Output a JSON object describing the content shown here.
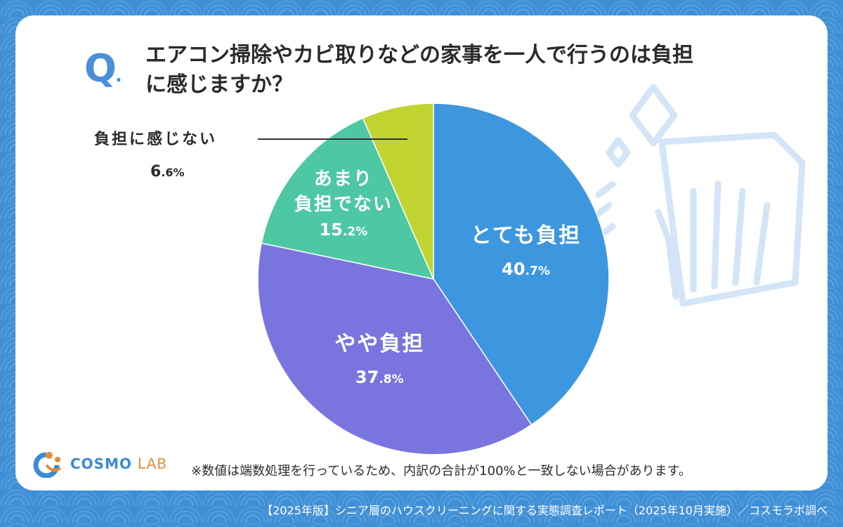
{
  "question": {
    "mark": "Q",
    "mark_dot": ".",
    "line1": "エアコン掃除やカビ取りなどの家事を一人で行うのは負担",
    "line2": "に感じますか？"
  },
  "chart_data": {
    "type": "pie",
    "title": "エアコン掃除やカビ取りなどの家事を一人で行うのは負担に感じますか？",
    "unit": "%",
    "slices": [
      {
        "label": "とても負担",
        "label_lines": [
          "とても負担"
        ],
        "value": 40.7,
        "value_main": "40",
        "value_dec": ".7%",
        "color": "#3d97df"
      },
      {
        "label": "やや負担",
        "label_lines": [
          "やや負担"
        ],
        "value": 37.8,
        "value_main": "37",
        "value_dec": ".8%",
        "color": "#7a75de"
      },
      {
        "label": "あまり負担でない",
        "label_lines": [
          "あまり",
          "負担でない"
        ],
        "value": 15.2,
        "value_main": "15",
        "value_dec": ".2%",
        "color": "#4ec8a3"
      },
      {
        "label": "負担に感じない",
        "label_lines": [
          "負担に感じない"
        ],
        "value": 6.6,
        "value_main": "6",
        "value_dec": ".6%",
        "color": "#c1d432"
      }
    ]
  },
  "outside": {
    "label": "負担に感じない",
    "value_main": "6",
    "value_dec": ".6%"
  },
  "logo": {
    "main": "COSMO",
    "sub": "LAB"
  },
  "footnote": "※数値は端数処理を行っているため、内訳の合計が100%と一致しない場合があります。",
  "source": "【2025年版】シニア層のハウスクリーニングに関する実態調査レポート（2025年10月実施）／コスモラボ調べ"
}
